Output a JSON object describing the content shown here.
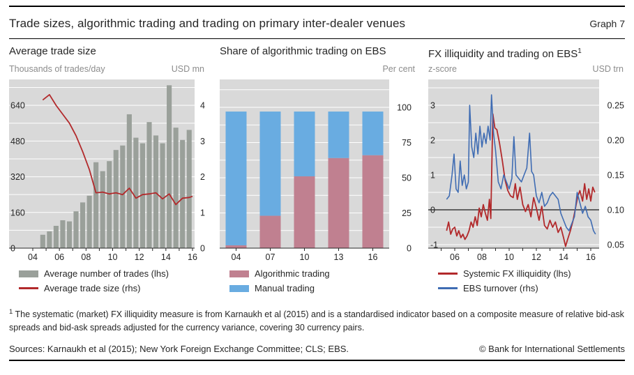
{
  "header": {
    "title": "Trade sizes, algorithmic trading and trading on primary inter-dealer venues",
    "graph_label": "Graph 7"
  },
  "panels": [
    {
      "title": "Average trade size",
      "unit_left": "Thousands of trades/day",
      "unit_right": "USD mn",
      "legend": [
        {
          "label": "Average number of trades (lhs)",
          "swatch": "bar_gray",
          "type": "box"
        },
        {
          "label": "Average trade size (rhs)",
          "swatch": "red",
          "type": "line"
        }
      ]
    },
    {
      "title": "Share of algorithmic trading on EBS",
      "unit_left": "",
      "unit_right": "Per cent",
      "legend": [
        {
          "label": "Algorithmic trading",
          "swatch": "pink",
          "type": "box"
        },
        {
          "label": "Manual trading",
          "swatch": "light_blue",
          "type": "box"
        }
      ]
    },
    {
      "title": "FX illiquidity and trading on EBS",
      "title_sup": "1",
      "unit_left": "z-score",
      "unit_right": "USD trn",
      "legend": [
        {
          "label": "Systemic FX illiquidity (lhs)",
          "swatch": "red",
          "type": "line"
        },
        {
          "label": "EBS turnover (rhs)",
          "swatch": "blue",
          "type": "line"
        }
      ]
    }
  ],
  "chart_data": [
    {
      "type": "bar+line",
      "title": "Average trade size",
      "x_axis": {
        "tick_years": [
          2004,
          2005,
          2006,
          2007,
          2008,
          2009,
          2010,
          2011,
          2012,
          2013,
          2014,
          2015,
          2016
        ],
        "label_years": [
          2004,
          2006,
          2008,
          2010,
          2012,
          2014,
          2016
        ],
        "labels": [
          "04",
          "06",
          "08",
          "10",
          "12",
          "14",
          "16"
        ]
      },
      "axis_left": {
        "label": "Thousands of trades/day",
        "ticks": [
          0,
          160,
          320,
          480,
          640
        ],
        "max": 756,
        "grid_step": 80
      },
      "axis_right": {
        "label": "USD mn",
        "ticks": [
          0,
          1,
          2,
          3,
          4
        ],
        "per_left_unit": 160
      },
      "bars": {
        "name": "Average number of trades (lhs)",
        "freq": "semiannual",
        "start": 2004.5,
        "step": 0.5,
        "values": [
          60,
          75,
          100,
          125,
          120,
          165,
          205,
          235,
          385,
          345,
          390,
          440,
          460,
          600,
          495,
          470,
          565,
          505,
          470,
          730,
          540,
          485,
          530
        ]
      },
      "line": {
        "name": "Average trade size (rhs)",
        "start": 2004.75,
        "step": 0.5,
        "values": [
          4.15,
          4.3,
          4.0,
          3.75,
          3.5,
          3.15,
          2.7,
          2.2,
          1.55,
          1.57,
          1.52,
          1.55,
          1.5,
          1.68,
          1.4,
          1.5,
          1.52,
          1.55,
          1.38,
          1.52,
          1.22,
          1.4,
          1.42,
          1.45
        ]
      }
    },
    {
      "type": "stacked-bar",
      "title": "Share of algorithmic trading on EBS",
      "categories": [
        "04",
        "07",
        "10",
        "13",
        "16"
      ],
      "series": [
        {
          "name": "Algorithmic trading",
          "values": [
            2,
            23,
            51,
            64,
            66
          ]
        },
        {
          "name": "Manual trading",
          "values": [
            95,
            74,
            46,
            33,
            31
          ]
        }
      ],
      "axis_right": {
        "label": "Per cent",
        "ticks": [
          0,
          25,
          50,
          75,
          100
        ],
        "max": 120,
        "grid_step": 12.5
      }
    },
    {
      "type": "line",
      "title": "FX illiquidity and trading on EBS",
      "x_axis": {
        "tick_years": [
          2005,
          2006,
          2007,
          2008,
          2009,
          2010,
          2011,
          2012,
          2013,
          2014,
          2015,
          2016
        ],
        "label_years": [
          2006,
          2008,
          2010,
          2012,
          2014,
          2016
        ],
        "labels": [
          "06",
          "08",
          "10",
          "12",
          "14",
          "16"
        ]
      },
      "axis_left": {
        "label": "z-score",
        "ticks": [
          -1,
          0,
          1,
          2,
          3
        ],
        "min": -1.1,
        "max": 3.74,
        "grid_step": 0.5,
        "zero_line": true
      },
      "axis_right": {
        "label": "USD trn",
        "tick_labels": [
          "0.05",
          "0.10",
          "0.15",
          "0.20",
          "0.25"
        ],
        "tick_at_z": [
          -1,
          0,
          1,
          2,
          3
        ]
      },
      "series": [
        {
          "name": "Systemic FX illiquidity (lhs)",
          "axis": "left",
          "x": [
            2005.4,
            2005.55,
            2005.7,
            2005.85,
            2006.0,
            2006.15,
            2006.3,
            2006.45,
            2006.6,
            2006.75,
            2006.9,
            2007.05,
            2007.2,
            2007.35,
            2007.5,
            2007.65,
            2007.8,
            2007.95,
            2008.1,
            2008.25,
            2008.4,
            2008.55,
            2008.65,
            2008.8,
            2008.95,
            2009.1,
            2009.3,
            2009.5,
            2009.7,
            2009.9,
            2010.1,
            2010.3,
            2010.45,
            2010.6,
            2010.8,
            2011.0,
            2011.2,
            2011.4,
            2011.6,
            2011.8,
            2012.0,
            2012.2,
            2012.4,
            2012.6,
            2012.8,
            2013.0,
            2013.2,
            2013.4,
            2013.6,
            2013.8,
            2014.0,
            2014.15,
            2014.3,
            2014.5,
            2014.7,
            2014.9,
            2015.05,
            2015.2,
            2015.4,
            2015.55,
            2015.7,
            2015.85,
            2016.0,
            2016.15,
            2016.3
          ],
          "y": [
            -0.6,
            -0.35,
            -0.7,
            -0.55,
            -0.5,
            -0.75,
            -0.6,
            -0.8,
            -0.7,
            -0.85,
            -0.75,
            -0.6,
            -0.35,
            -0.5,
            -0.2,
            -0.45,
            0.05,
            -0.2,
            0.15,
            -0.1,
            -0.3,
            0.3,
            -0.25,
            2.75,
            2.35,
            2.3,
            1.9,
            1.4,
            0.85,
            0.55,
            0.4,
            0.35,
            0.75,
            0.3,
            0.65,
            0.15,
            -0.05,
            0.15,
            -0.2,
            0.35,
            0.05,
            -0.3,
            0.1,
            -0.45,
            -0.55,
            -0.3,
            -0.5,
            -0.35,
            -0.65,
            -0.5,
            -0.8,
            -1.05,
            -0.85,
            -0.6,
            -0.3,
            0.1,
            0.4,
            0.55,
            0.25,
            0.75,
            0.3,
            0.6,
            0.25,
            0.65,
            0.5
          ]
        },
        {
          "name": "EBS turnover (rhs)",
          "axis": "right",
          "x": [
            2005.4,
            2005.6,
            2005.8,
            2005.95,
            2006.1,
            2006.25,
            2006.4,
            2006.55,
            2006.7,
            2006.85,
            2007.0,
            2007.1,
            2007.25,
            2007.4,
            2007.55,
            2007.7,
            2007.85,
            2008.0,
            2008.15,
            2008.3,
            2008.45,
            2008.6,
            2008.7,
            2008.85,
            2009.0,
            2009.2,
            2009.4,
            2009.6,
            2009.8,
            2010.0,
            2010.2,
            2010.35,
            2010.5,
            2010.7,
            2010.9,
            2011.1,
            2011.3,
            2011.5,
            2011.65,
            2011.8,
            2012.0,
            2012.2,
            2012.4,
            2012.6,
            2012.8,
            2013.0,
            2013.2,
            2013.4,
            2013.6,
            2013.8,
            2014.0,
            2014.2,
            2014.4,
            2014.6,
            2014.8,
            2015.0,
            2015.2,
            2015.4,
            2015.6,
            2015.8,
            2016.0,
            2016.2,
            2016.35
          ],
          "y": [
            0.115,
            0.12,
            0.15,
            0.18,
            0.13,
            0.125,
            0.17,
            0.135,
            0.15,
            0.13,
            0.14,
            0.25,
            0.19,
            0.175,
            0.21,
            0.18,
            0.22,
            0.19,
            0.21,
            0.195,
            0.22,
            0.2,
            0.265,
            0.21,
            0.185,
            0.14,
            0.13,
            0.15,
            0.14,
            0.13,
            0.145,
            0.205,
            0.15,
            0.145,
            0.14,
            0.15,
            0.16,
            0.21,
            0.155,
            0.15,
            0.12,
            0.11,
            0.125,
            0.105,
            0.11,
            0.12,
            0.125,
            0.12,
            0.115,
            0.095,
            0.085,
            0.075,
            0.07,
            0.08,
            0.09,
            0.125,
            0.11,
            0.095,
            0.105,
            0.09,
            0.085,
            0.07,
            0.065
          ]
        }
      ]
    }
  ],
  "footnote": {
    "marker": "1",
    "text": "The systematic (market) FX illiquidity measure is from Karnaukh et al (2015) and is a standardised indicator based on a composite measure of relative bid-ask spreads and bid-ask spreads adjusted for the currency variance, covering 30 currency pairs."
  },
  "footer": {
    "sources": "Sources: Karnaukh et al (2015); New York Foreign Exchange Committee; CLS; EBS.",
    "copyright": "© Bank for International Settlements"
  },
  "colors": {
    "bar_gray": "#9aa09a",
    "red": "#b2292b",
    "pink": "#c08090",
    "light_blue": "#69ace1",
    "blue": "#3f6cb3",
    "plot_bg": "#d9d9d9",
    "grid": "#ffffff",
    "axis": "#262626",
    "unit_text": "#8c8c8c",
    "text": "#262626"
  }
}
